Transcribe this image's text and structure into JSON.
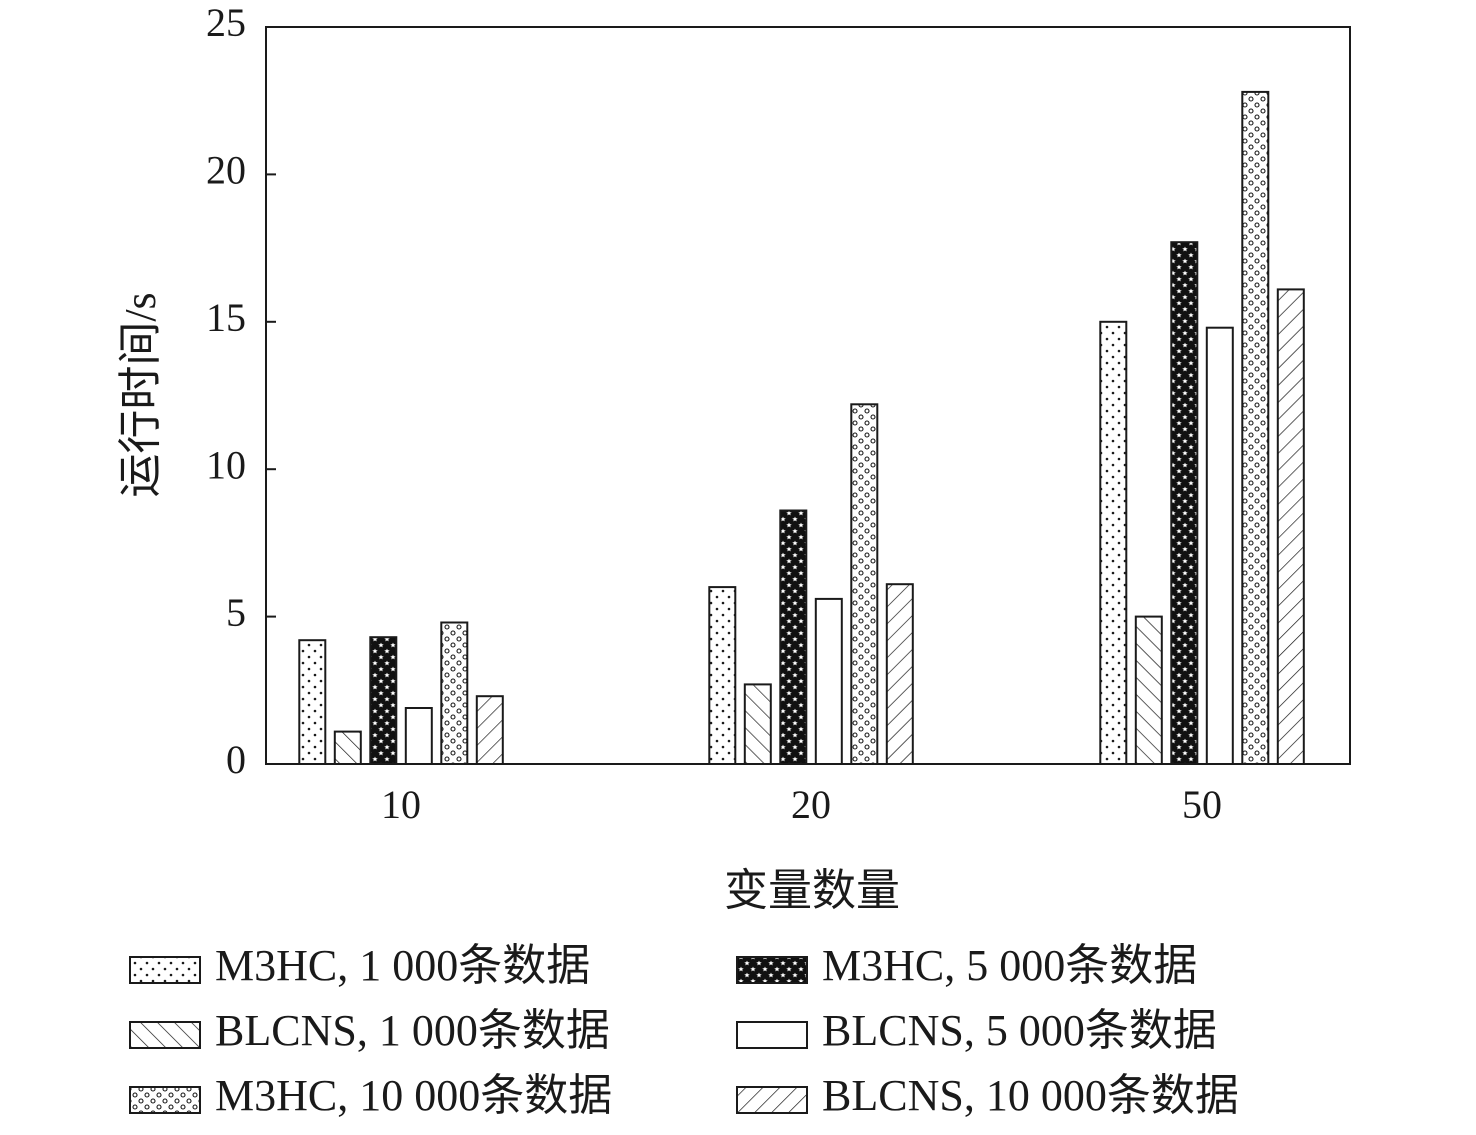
{
  "chart_data": {
    "type": "bar",
    "xlabel": "变量数量",
    "ylabel": "运行时间/s",
    "categories": [
      "10",
      "20",
      "50"
    ],
    "ylim": [
      0,
      25
    ],
    "yticks": [
      "0",
      "5",
      "10",
      "15",
      "20",
      "25"
    ],
    "grid": false,
    "legend_position": "bottom",
    "series": [
      {
        "name": "M3HC, 1 000条数据",
        "pattern": "sparse-dots",
        "values": [
          4.2,
          6.0,
          15.0
        ]
      },
      {
        "name": "BLCNS, 1 000条数据",
        "pattern": "backslash-hatch",
        "values": [
          1.1,
          2.7,
          5.0
        ]
      },
      {
        "name": "M3HC, 5 000条数据",
        "pattern": "stars-on-black",
        "values": [
          4.3,
          8.6,
          17.7
        ]
      },
      {
        "name": "BLCNS, 5 000条数据",
        "pattern": "plain",
        "values": [
          1.9,
          5.6,
          14.8
        ]
      },
      {
        "name": "M3HC, 10 000条数据",
        "pattern": "small-circles",
        "values": [
          4.8,
          12.2,
          22.8
        ]
      },
      {
        "name": "BLCNS, 10 000条数据",
        "pattern": "slash-hatch",
        "values": [
          2.3,
          6.1,
          16.1
        ]
      }
    ]
  }
}
